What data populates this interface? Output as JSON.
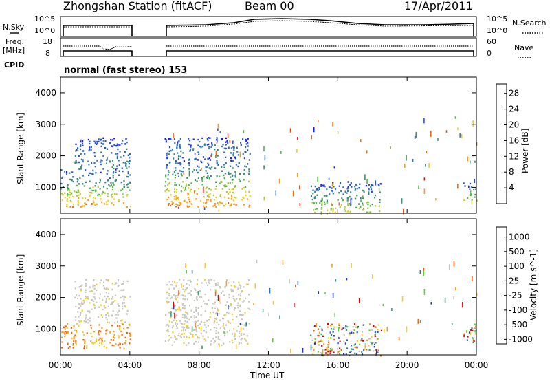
{
  "header": {
    "station": "Zhongshan Station (fitACF)",
    "beam": "Beam 00",
    "date": "17/Apr/2011"
  },
  "top_panels": {
    "nsky_label": "N.Sky",
    "nsearch_label": "N.Search",
    "freq_label_1": "Freq.",
    "freq_label_2": "[MHz]",
    "nave_label": "Nave",
    "cpid_label": "CPID",
    "cpid_text": "normal (fast stereo) 153",
    "noise_left_ticks": [
      "10^5",
      "10^0"
    ],
    "noise_right_ticks": [
      "10^5",
      "10^0"
    ],
    "freq_ticks": [
      "18",
      "8"
    ],
    "nave_ticks": [
      "60",
      "0"
    ]
  },
  "chart_data": [
    {
      "type": "heatmap",
      "name": "power",
      "ylabel": "Slant Range [km]",
      "xlabel": "Time UT",
      "x_ticks": [
        "00:00",
        "04:00",
        "08:00",
        "12:00",
        "16:00",
        "20:00",
        "00:00"
      ],
      "y_ticks": [
        1000,
        2000,
        3000,
        4000
      ],
      "ylim": [
        180,
        4500
      ],
      "colorbar": {
        "label": "Power [dB]",
        "ticks": [
          "4",
          "8",
          "12",
          "16",
          "20",
          "24",
          "28"
        ],
        "colors": [
          "#1a1aff",
          "#2855c8",
          "#3a78b8",
          "#3f9070",
          "#58b848",
          "#b8c840",
          "#f0d028",
          "#f4a020",
          "#ef7010",
          "#e83a10",
          "#e00000"
        ]
      },
      "data_gap": [
        4.0,
        6.0
      ],
      "regions": [
        {
          "t0": 0.0,
          "t1": 4.0,
          "r0": 400,
          "r1": 1600,
          "level": "high"
        },
        {
          "t0": 0.8,
          "t1": 4.0,
          "r0": 1600,
          "r1": 2600,
          "level": "low"
        },
        {
          "t0": 6.0,
          "t1": 10.9,
          "r0": 400,
          "r1": 2000,
          "level": "high"
        },
        {
          "t0": 6.0,
          "t1": 10.9,
          "r0": 2000,
          "r1": 2600,
          "level": "low"
        },
        {
          "t0": 14.4,
          "t1": 18.5,
          "r0": 180,
          "r1": 1200,
          "level": "mid"
        },
        {
          "t0": 23.2,
          "t1": 24.0,
          "r0": 600,
          "r1": 1200,
          "level": "mid"
        }
      ]
    },
    {
      "type": "heatmap",
      "name": "velocity",
      "ylabel": "Slant Range [km]",
      "xlabel": "Time UT",
      "x_ticks": [
        "00:00",
        "04:00",
        "08:00",
        "12:00",
        "16:00",
        "20:00",
        "00:00"
      ],
      "y_ticks": [
        1000,
        2000,
        3000,
        4000
      ],
      "ylim": [
        180,
        4500
      ],
      "colorbar": {
        "label": "Velocity [m s^-1]",
        "ticks": [
          "1000",
          "500",
          "100",
          "25",
          "-25",
          "-100",
          "-500",
          "-1000"
        ],
        "colors": [
          "#1a3ab8",
          "#2b6fb8",
          "#3f9f70",
          "#5fd040",
          "#c8c8c0",
          "#f0d028",
          "#f4a020",
          "#ef6010",
          "#e00000"
        ]
      },
      "data_gap": [
        4.0,
        6.0
      ],
      "regions": [
        {
          "t0": 0.0,
          "t1": 4.0,
          "r0": 400,
          "r1": 1200,
          "level": "-100"
        },
        {
          "t0": 0.8,
          "t1": 4.0,
          "r0": 1200,
          "r1": 2600,
          "level": "-25"
        },
        {
          "t0": 6.0,
          "t1": 10.9,
          "r0": 500,
          "r1": 2600,
          "level": "-25"
        },
        {
          "t0": 14.4,
          "t1": 18.5,
          "r0": 180,
          "r1": 1200,
          "level": "mixed"
        },
        {
          "t0": 23.2,
          "t1": 24.0,
          "r0": 600,
          "r1": 1200,
          "level": "mixed"
        }
      ]
    }
  ]
}
